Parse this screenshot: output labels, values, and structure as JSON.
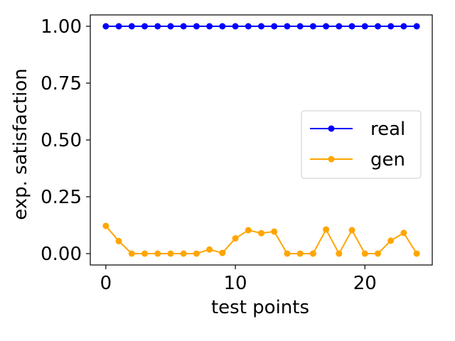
{
  "chart_data": {
    "type": "line",
    "xlabel": "test points",
    "ylabel": "exp. satisfaction",
    "xlim": [
      -1.2,
      25.2
    ],
    "ylim": [
      -0.05,
      1.05
    ],
    "xticks": [
      {
        "value": 0,
        "label": "0"
      },
      {
        "value": 10,
        "label": "10"
      },
      {
        "value": 20,
        "label": "20"
      }
    ],
    "yticks": [
      {
        "value": 0.0,
        "label": "0.00"
      },
      {
        "value": 0.25,
        "label": "0.25"
      },
      {
        "value": 0.5,
        "label": "0.50"
      },
      {
        "value": 0.75,
        "label": "0.75"
      },
      {
        "value": 1.0,
        "label": "1.00"
      }
    ],
    "grid": false,
    "legend_position": "center-right",
    "x": [
      0,
      1,
      2,
      3,
      4,
      5,
      6,
      7,
      8,
      9,
      10,
      11,
      12,
      13,
      14,
      15,
      16,
      17,
      18,
      19,
      20,
      21,
      22,
      23,
      24
    ],
    "series": [
      {
        "name": "real",
        "color": "#0000ff",
        "values": [
          1,
          1,
          1,
          1,
          1,
          1,
          1,
          1,
          1,
          1,
          1,
          1,
          1,
          1,
          1,
          1,
          1,
          1,
          1,
          1,
          1,
          1,
          1,
          1,
          1
        ]
      },
      {
        "name": "gen",
        "color": "#ffa500",
        "values": [
          0.122,
          0.055,
          0.0,
          0.0,
          0.0,
          0.0,
          0.0,
          0.0,
          0.018,
          0.003,
          0.067,
          0.103,
          0.09,
          0.097,
          0.0,
          0.0,
          0.0,
          0.106,
          0.0,
          0.103,
          0.0,
          0.0,
          0.057,
          0.091,
          0.0
        ]
      }
    ]
  }
}
